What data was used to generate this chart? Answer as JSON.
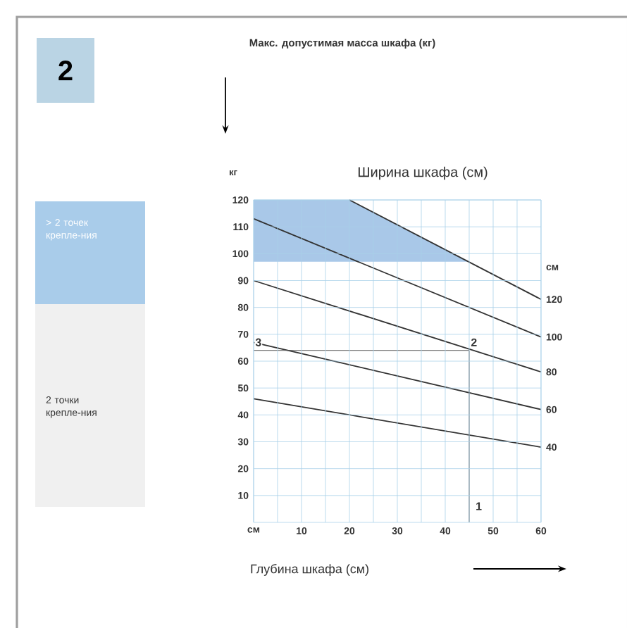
{
  "chart_data": {
    "type": "line",
    "title": "Макс. допустимая масса шкафа (кг)",
    "xlabel": "Глубина шкафа (см)",
    "ylabel": "кг",
    "legend_title": "Ширина шкафа (см)",
    "series": [
      {
        "name": "120",
        "color": "#333333",
        "x": [
          20,
          60
        ],
        "values": [
          120,
          83
        ]
      },
      {
        "name": "100",
        "color": "#333333",
        "x": [
          0,
          60
        ],
        "values": [
          113,
          69
        ]
      },
      {
        "name": "80",
        "color": "#333333",
        "x": [
          0,
          60
        ],
        "values": [
          90,
          56
        ]
      },
      {
        "name": "60",
        "color": "#333333",
        "x": [
          0,
          60
        ],
        "values": [
          67,
          42
        ]
      },
      {
        "name": "40",
        "color": "#333333",
        "x": [
          0,
          60
        ],
        "values": [
          46,
          28
        ]
      },
      {
        "color": "#555555",
        "x": [
          45,
          45,
          0
        ],
        "values": [
          0,
          64,
          64
        ]
      }
    ],
    "xlim": [
      0,
      60
    ],
    "ylim": [
      0,
      120
    ],
    "xticks": [
      {
        "value": 0,
        "label": "см"
      },
      10,
      20,
      30,
      40,
      50,
      60
    ],
    "yticks": [
      10,
      20,
      30,
      40,
      50,
      60,
      70,
      80,
      90,
      100,
      110,
      120
    ],
    "grid": true,
    "bands": [
      {
        "axis": "y",
        "from": 97,
        "to": 120,
        "color": "#a9c8e8"
      }
    ],
    "annotations": [
      {
        "text": "1",
        "x": 47,
        "y": 6
      },
      {
        "text": "2",
        "x": 46,
        "y": 67
      },
      {
        "text": "3",
        "x": 1,
        "y": 67
      },
      "2",
      "> 2 точек крепле-ния",
      "2 точки крепле-ния",
      "см"
    ]
  }
}
